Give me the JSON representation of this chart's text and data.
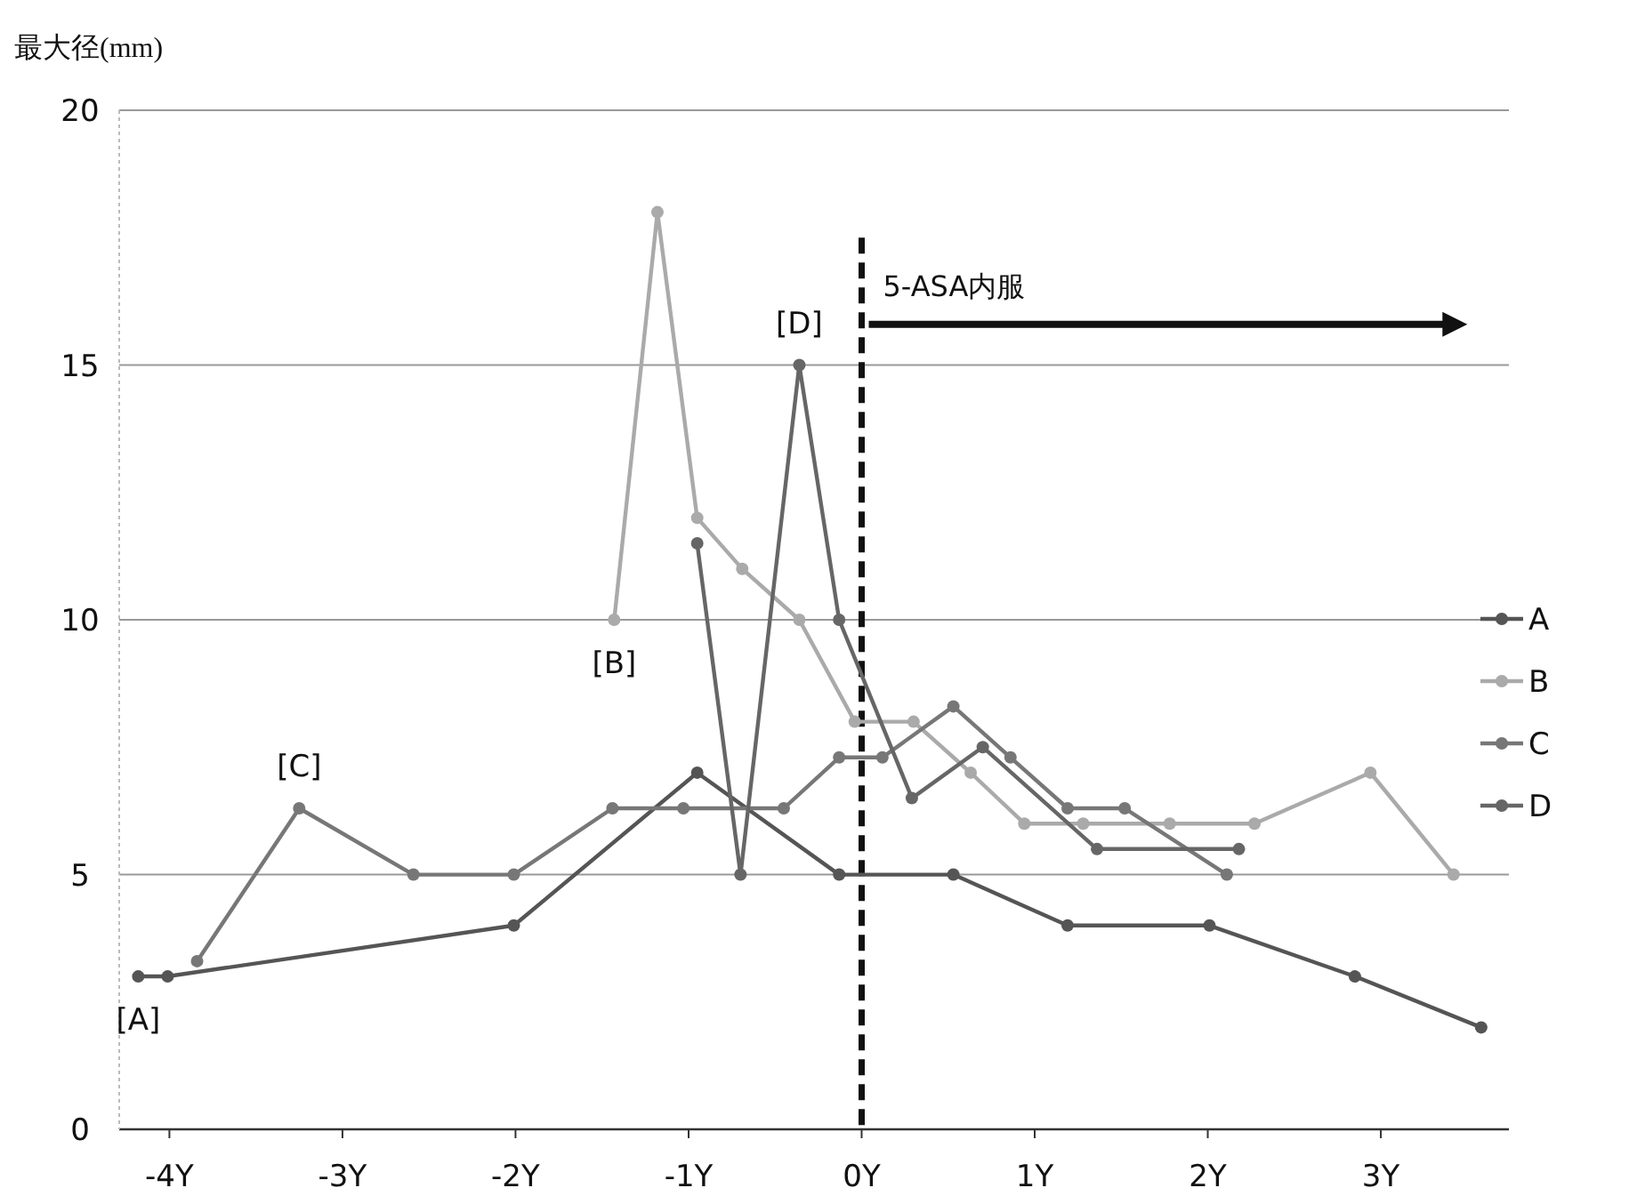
{
  "chart_data": {
    "type": "line",
    "ylabel": "最大径(mm)",
    "xlim": [
      -4.29,
      3.74
    ],
    "ylim": [
      0,
      20
    ],
    "xticks": [
      {
        "value": -4,
        "label": "-4Y"
      },
      {
        "value": -3,
        "label": "-3Y"
      },
      {
        "value": -2,
        "label": "-2Y"
      },
      {
        "value": -1,
        "label": "-1Y"
      },
      {
        "value": 0,
        "label": "0Y"
      },
      {
        "value": 1,
        "label": "1Y"
      },
      {
        "value": 2,
        "label": "2Y"
      },
      {
        "value": 3,
        "label": "3Y"
      }
    ],
    "yticks": [
      0,
      5,
      10,
      15,
      20
    ],
    "grid": "y",
    "legend": "right",
    "marker": "circle",
    "series": [
      {
        "name": "A",
        "color": "#555555",
        "x": [
          -4.18,
          -4.01,
          -2.01,
          -0.95,
          -0.13,
          0.53,
          1.19,
          2.01,
          2.85,
          3.58
        ],
        "values": [
          3,
          3,
          4,
          7,
          5,
          5,
          4,
          4,
          3,
          2
        ]
      },
      {
        "name": "B",
        "color": "#aaaaaa",
        "x": [
          -1.43,
          -1.18,
          -0.95,
          -0.69,
          -0.36,
          -0.04,
          0.3,
          0.63,
          0.94,
          1.28,
          1.78,
          2.27,
          2.94,
          3.42
        ],
        "values": [
          10,
          18,
          12,
          11,
          10,
          8,
          8,
          7,
          6,
          6,
          6,
          6,
          7,
          5
        ]
      },
      {
        "name": "C",
        "color": "#777777",
        "x": [
          -3.84,
          -3.25,
          -2.59,
          -2.01,
          -1.44,
          -1.03,
          -0.45,
          -0.13,
          0.12,
          0.53,
          0.86,
          1.19,
          1.52,
          2.11
        ],
        "values": [
          3.3,
          6.3,
          5,
          5,
          6.3,
          6.3,
          6.3,
          7.3,
          7.3,
          8.3,
          7.3,
          6.3,
          6.3,
          5
        ]
      },
      {
        "name": "D",
        "color": "#666666",
        "x": [
          -0.95,
          -0.7,
          -0.36,
          -0.13,
          0.29,
          0.7,
          1.36,
          2.18
        ],
        "values": [
          11.5,
          5,
          15,
          10,
          6.5,
          7.5,
          5.5,
          5.5
        ]
      }
    ],
    "ref_lines": [
      {
        "axis": "x",
        "value": 0,
        "color": "#111111",
        "line_style": "dashed"
      }
    ],
    "annotations": [
      {
        "text": "[A]",
        "x": -4.18,
        "y": 3
      },
      {
        "text": "[B]",
        "x": -1.43,
        "y": 10
      },
      {
        "text": "[C]",
        "x": -3.25,
        "y": 6.3
      },
      {
        "text": "[D]",
        "x": -0.36,
        "y": 15
      },
      {
        "text": "5-ASA内服",
        "x": 0,
        "y": 15.8
      }
    ]
  }
}
